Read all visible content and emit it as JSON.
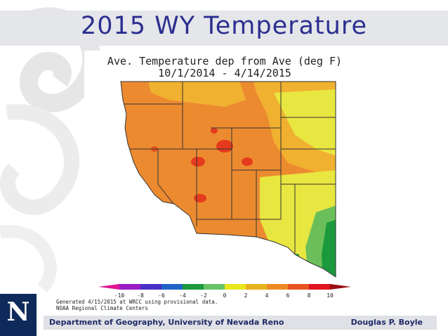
{
  "slide": {
    "title": "2015 WY Temperature",
    "footer_department": "Department of Geography, University of Nevada Reno",
    "footer_author": "Douglas P. Boyle",
    "logo_letter": "N"
  },
  "map": {
    "title_line1": "Ave. Temperature dep from Ave (deg F)",
    "title_line2": "10/1/2014 - 4/14/2015",
    "generated_note": "Generated 4/15/2015 at WRCC using provisional data.",
    "source_note": "NOAA Regional Climate Centers",
    "colorbar_ticks": [
      "-10",
      "-8",
      "-6",
      "-4",
      "-2",
      "0",
      "2",
      "4",
      "6",
      "8",
      "10"
    ],
    "colorbar_colors": [
      "#e0158f",
      "#9a1cc6",
      "#4a2fc8",
      "#1f64c8",
      "#1a9a3c",
      "#66c466",
      "#e8e61e",
      "#e8b41e",
      "#ec8a24",
      "#e8541e",
      "#e0141e",
      "#9a0e12"
    ],
    "colors": {
      "ocean_bg": "#ffffff",
      "warm_base": "#ec8a30",
      "moderate": "#f0b030",
      "mild": "#e8e640",
      "hot": "#e63a1e",
      "cool": "#1a9a3c",
      "boundary": "#333333"
    }
  }
}
